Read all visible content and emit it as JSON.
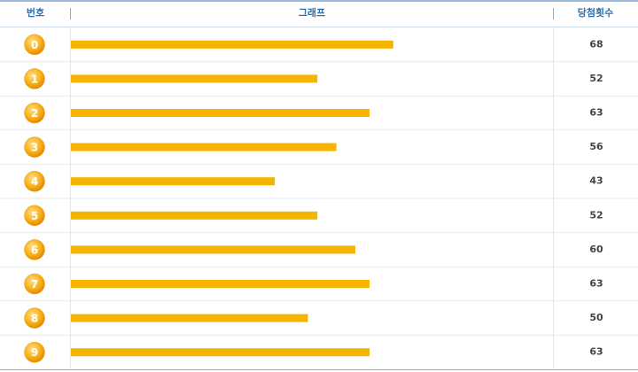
{
  "chart_data": {
    "type": "bar",
    "orientation": "horizontal",
    "headers": [
      "번호",
      "그래프",
      "당첨횟수"
    ],
    "categories": [
      "0",
      "1",
      "2",
      "3",
      "4",
      "5",
      "6",
      "7",
      "8",
      "9"
    ],
    "values": [
      68,
      52,
      63,
      56,
      43,
      52,
      60,
      63,
      50,
      63
    ],
    "color": "#f5b400"
  }
}
